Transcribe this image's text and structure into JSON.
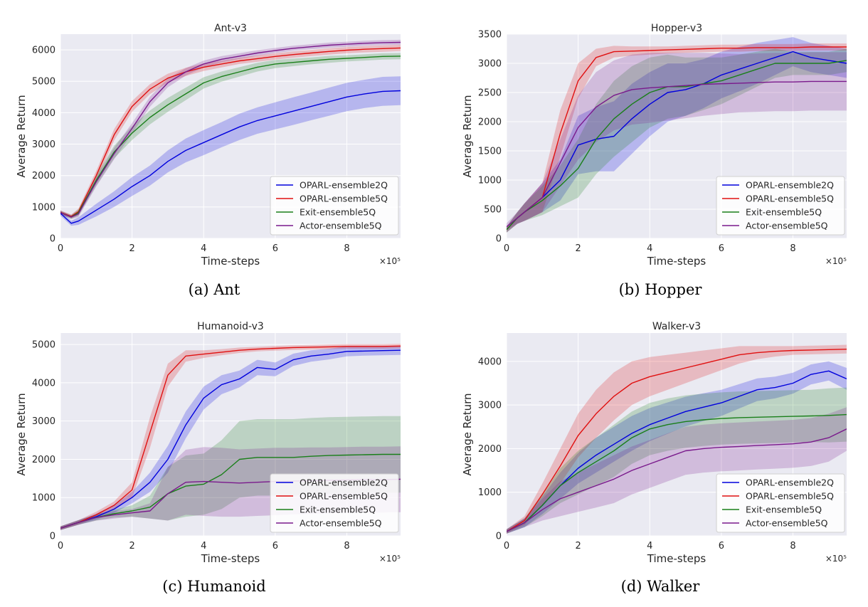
{
  "colors": {
    "OPARL-ensemble2Q": "#0000dd",
    "OPARL-ensemble5Q": "#e01010",
    "Exit-ensemble5Q": "#1a7f1a",
    "Actor-ensemble5Q": "#7a1a8c",
    "plot_bg": "#eaeaf2",
    "grid": "#ffffff"
  },
  "chart_data": [
    {
      "type": "line",
      "title": "Ant-v3",
      "caption": "(a)  Ant",
      "xlabel": "Time-steps",
      "ylabel": "Average Return",
      "x_scale_label": "×10⁵",
      "xlim": [
        0,
        9.5
      ],
      "ylim": [
        0,
        6500
      ],
      "xticks": [
        "0",
        "2",
        "4",
        "6",
        "8"
      ],
      "yticks": [
        "0",
        "1000",
        "2000",
        "3000",
        "4000",
        "5000",
        "6000"
      ],
      "legend_position": "lower-right",
      "x": [
        0,
        0.3,
        0.5,
        1,
        1.5,
        2,
        2.5,
        3,
        3.5,
        4,
        4.5,
        5,
        5.5,
        6,
        6.5,
        7,
        7.5,
        8,
        8.5,
        9,
        9.5
      ],
      "series": [
        {
          "name": "OPARL-ensemble2Q",
          "values": [
            800,
            480,
            550,
            900,
            1250,
            1650,
            2000,
            2450,
            2800,
            3050,
            3300,
            3550,
            3750,
            3900,
            4050,
            4200,
            4350,
            4500,
            4600,
            4680,
            4700
          ],
          "band": [
            80,
            80,
            120,
            200,
            250,
            300,
            320,
            350,
            380,
            400,
            400,
            420,
            420,
            430,
            440,
            440,
            450,
            450,
            450,
            460,
            460
          ]
        },
        {
          "name": "OPARL-ensemble5Q",
          "values": [
            830,
            700,
            850,
            2000,
            3300,
            4200,
            4750,
            5100,
            5300,
            5450,
            5550,
            5650,
            5720,
            5790,
            5850,
            5900,
            5950,
            5990,
            6020,
            6040,
            6060
          ],
          "band": [
            60,
            60,
            100,
            150,
            180,
            170,
            160,
            140,
            130,
            120,
            110,
            100,
            100,
            100,
            100,
            100,
            100,
            100,
            100,
            100,
            100
          ]
        },
        {
          "name": "Exit-ensemble5Q",
          "values": [
            820,
            680,
            820,
            1850,
            2750,
            3350,
            3850,
            4250,
            4600,
            4950,
            5150,
            5300,
            5450,
            5550,
            5600,
            5650,
            5700,
            5730,
            5760,
            5790,
            5800
          ],
          "band": [
            60,
            60,
            100,
            170,
            200,
            220,
            220,
            220,
            200,
            180,
            160,
            150,
            140,
            130,
            120,
            110,
            110,
            100,
            100,
            100,
            100
          ]
        },
        {
          "name": "Actor-ensemble5Q",
          "values": [
            820,
            680,
            780,
            1800,
            2700,
            3500,
            4350,
            4950,
            5300,
            5550,
            5700,
            5800,
            5900,
            5980,
            6050,
            6100,
            6150,
            6180,
            6210,
            6230,
            6240
          ],
          "band": [
            60,
            60,
            100,
            150,
            180,
            170,
            160,
            140,
            120,
            110,
            100,
            90,
            90,
            80,
            80,
            80,
            80,
            80,
            80,
            80,
            80
          ]
        }
      ]
    },
    {
      "type": "line",
      "title": "Hopper-v3",
      "caption": "(b)  Hopper",
      "xlabel": "Time-steps",
      "ylabel": "Average Return",
      "x_scale_label": "×10⁵",
      "xlim": [
        0,
        9.5
      ],
      "ylim": [
        0,
        3500
      ],
      "xticks": [
        "0",
        "2",
        "4",
        "6",
        "8"
      ],
      "yticks": [
        "0",
        "500",
        "1000",
        "1500",
        "2000",
        "2500",
        "3000",
        "3500"
      ],
      "legend_position": "lower-right",
      "x": [
        0,
        0.3,
        0.5,
        1,
        1.5,
        2,
        2.5,
        3,
        3.5,
        4,
        4.5,
        5,
        5.5,
        6,
        6.5,
        7,
        7.5,
        8,
        8.5,
        9,
        9.5
      ],
      "series": [
        {
          "name": "OPARL-ensemble2Q",
          "values": [
            150,
            350,
            450,
            700,
            1000,
            1600,
            1700,
            1750,
            2050,
            2300,
            2500,
            2550,
            2650,
            2800,
            2900,
            3000,
            3100,
            3200,
            3100,
            3050,
            3000
          ],
          "band": [
            50,
            100,
            150,
            250,
            350,
            500,
            550,
            600,
            600,
            550,
            500,
            450,
            420,
            400,
            380,
            350,
            300,
            250,
            250,
            250,
            250
          ]
        },
        {
          "name": "OPARL-ensemble5Q",
          "values": [
            150,
            350,
            450,
            700,
            1800,
            2700,
            3100,
            3200,
            3210,
            3220,
            3230,
            3240,
            3250,
            3260,
            3260,
            3270,
            3270,
            3270,
            3280,
            3280,
            3280
          ],
          "band": [
            50,
            100,
            150,
            250,
            400,
            300,
            150,
            100,
            80,
            70,
            60,
            60,
            60,
            60,
            60,
            60,
            60,
            60,
            60,
            60,
            60
          ]
        },
        {
          "name": "Exit-ensemble5Q",
          "values": [
            150,
            350,
            450,
            650,
            900,
            1200,
            1700,
            2050,
            2300,
            2500,
            2600,
            2600,
            2650,
            2700,
            2800,
            2900,
            3000,
            3000,
            3000,
            3000,
            3050
          ],
          "band": [
            50,
            100,
            150,
            250,
            350,
            500,
            600,
            650,
            650,
            600,
            550,
            500,
            450,
            400,
            350,
            300,
            250,
            200,
            200,
            200,
            200
          ]
        },
        {
          "name": "Actor-ensemble5Q",
          "values": [
            200,
            350,
            450,
            700,
            1300,
            1900,
            2250,
            2450,
            2550,
            2580,
            2600,
            2620,
            2640,
            2650,
            2660,
            2670,
            2680,
            2680,
            2690,
            2690,
            2690
          ],
          "band": [
            60,
            100,
            150,
            250,
            400,
            550,
            600,
            600,
            600,
            600,
            580,
            560,
            540,
            520,
            500,
            500,
            500,
            500,
            500,
            500,
            500
          ]
        }
      ]
    },
    {
      "type": "line",
      "title": "Humanoid-v3",
      "caption": "(c)  Humanoid",
      "xlabel": "Time-steps",
      "ylabel": "Average Return",
      "x_scale_label": "×10⁵",
      "xlim": [
        0,
        9.5
      ],
      "ylim": [
        0,
        5300
      ],
      "xticks": [
        "0",
        "2",
        "4",
        "6",
        "8"
      ],
      "yticks": [
        "0",
        "1000",
        "2000",
        "3000",
        "4000",
        "5000"
      ],
      "legend_position": "lower-right",
      "x": [
        0,
        0.5,
        1,
        1.5,
        2,
        2.5,
        3,
        3.5,
        4,
        4.5,
        5,
        5.5,
        6,
        6.5,
        7,
        7.5,
        8,
        8.5,
        9,
        9.5
      ],
      "series": [
        {
          "name": "OPARL-ensemble2Q",
          "values": [
            200,
            350,
            500,
            700,
            1000,
            1400,
            2000,
            2900,
            3600,
            3950,
            4100,
            4400,
            4350,
            4600,
            4700,
            4750,
            4820,
            4830,
            4840,
            4850
          ],
          "band": [
            50,
            60,
            80,
            100,
            150,
            250,
            350,
            350,
            300,
            250,
            220,
            200,
            180,
            160,
            150,
            140,
            130,
            120,
            120,
            120
          ]
        },
        {
          "name": "OPARL-ensemble5Q",
          "values": [
            200,
            350,
            550,
            800,
            1200,
            2700,
            4200,
            4700,
            4750,
            4800,
            4850,
            4880,
            4900,
            4920,
            4930,
            4940,
            4950,
            4950,
            4950,
            4960
          ],
          "band": [
            50,
            60,
            80,
            100,
            200,
            400,
            300,
            150,
            100,
            80,
            70,
            60,
            60,
            60,
            60,
            60,
            60,
            60,
            60,
            60
          ]
        },
        {
          "name": "Exit-ensemble5Q",
          "values": [
            200,
            350,
            480,
            580,
            650,
            750,
            1100,
            1300,
            1350,
            1600,
            2000,
            2050,
            2050,
            2050,
            2080,
            2100,
            2110,
            2120,
            2130,
            2130
          ],
          "band": [
            50,
            60,
            80,
            100,
            150,
            300,
            700,
            800,
            800,
            900,
            1000,
            1000,
            1000,
            1000,
            1000,
            1000,
            1000,
            1000,
            1000,
            1000
          ]
        },
        {
          "name": "Actor-ensemble5Q",
          "values": [
            200,
            350,
            480,
            550,
            600,
            650,
            1100,
            1400,
            1420,
            1400,
            1380,
            1400,
            1420,
            1430,
            1440,
            1450,
            1460,
            1470,
            1470,
            1480
          ],
          "band": [
            50,
            60,
            80,
            100,
            100,
            200,
            700,
            850,
            900,
            900,
            880,
            880,
            880,
            870,
            870,
            860,
            860,
            860,
            860,
            860
          ]
        }
      ]
    },
    {
      "type": "line",
      "title": "Walker-v3",
      "caption": "(d)  Walker",
      "xlabel": "Time-steps",
      "ylabel": "Average Return",
      "x_scale_label": "×10⁵",
      "xlim": [
        0,
        9.5
      ],
      "ylim": [
        0,
        4650
      ],
      "xticks": [
        "0",
        "2",
        "4",
        "6",
        "8"
      ],
      "yticks": [
        "0",
        "1000",
        "2000",
        "3000",
        "4000"
      ],
      "legend_position": "lower-right",
      "x": [
        0,
        0.5,
        1,
        1.5,
        2,
        2.5,
        3,
        3.5,
        4,
        4.5,
        5,
        5.5,
        6,
        6.5,
        7,
        7.5,
        8,
        8.5,
        9,
        9.5
      ],
      "series": [
        {
          "name": "OPARL-ensemble2Q",
          "values": [
            100,
            300,
            700,
            1150,
            1550,
            1850,
            2100,
            2350,
            2550,
            2700,
            2850,
            2950,
            3050,
            3200,
            3350,
            3400,
            3500,
            3700,
            3780,
            3600
          ],
          "band": [
            50,
            100,
            200,
            300,
            350,
            400,
            400,
            400,
            380,
            360,
            340,
            320,
            300,
            280,
            260,
            250,
            240,
            230,
            220,
            250
          ]
        },
        {
          "name": "OPARL-ensemble5Q",
          "values": [
            100,
            350,
            950,
            1600,
            2300,
            2800,
            3200,
            3500,
            3650,
            3750,
            3850,
            3950,
            4050,
            4150,
            4200,
            4230,
            4250,
            4260,
            4270,
            4280
          ],
          "band": [
            50,
            100,
            250,
            400,
            500,
            550,
            550,
            500,
            450,
            400,
            350,
            300,
            250,
            200,
            150,
            120,
            100,
            100,
            100,
            100
          ]
        },
        {
          "name": "Exit-ensemble5Q",
          "values": [
            100,
            300,
            700,
            1150,
            1450,
            1700,
            1950,
            2250,
            2450,
            2550,
            2620,
            2660,
            2690,
            2710,
            2720,
            2730,
            2740,
            2750,
            2760,
            2780
          ],
          "band": [
            50,
            100,
            250,
            400,
            500,
            550,
            600,
            600,
            600,
            600,
            600,
            600,
            600,
            600,
            600,
            600,
            600,
            600,
            620,
            620
          ]
        },
        {
          "name": "Actor-ensemble5Q",
          "values": [
            100,
            300,
            600,
            850,
            1000,
            1150,
            1300,
            1500,
            1650,
            1800,
            1950,
            2000,
            2030,
            2050,
            2070,
            2090,
            2110,
            2150,
            2250,
            2450
          ],
          "band": [
            50,
            100,
            250,
            400,
            450,
            500,
            550,
            550,
            550,
            550,
            550,
            550,
            550,
            550,
            550,
            550,
            550,
            550,
            550,
            500
          ]
        }
      ]
    }
  ]
}
